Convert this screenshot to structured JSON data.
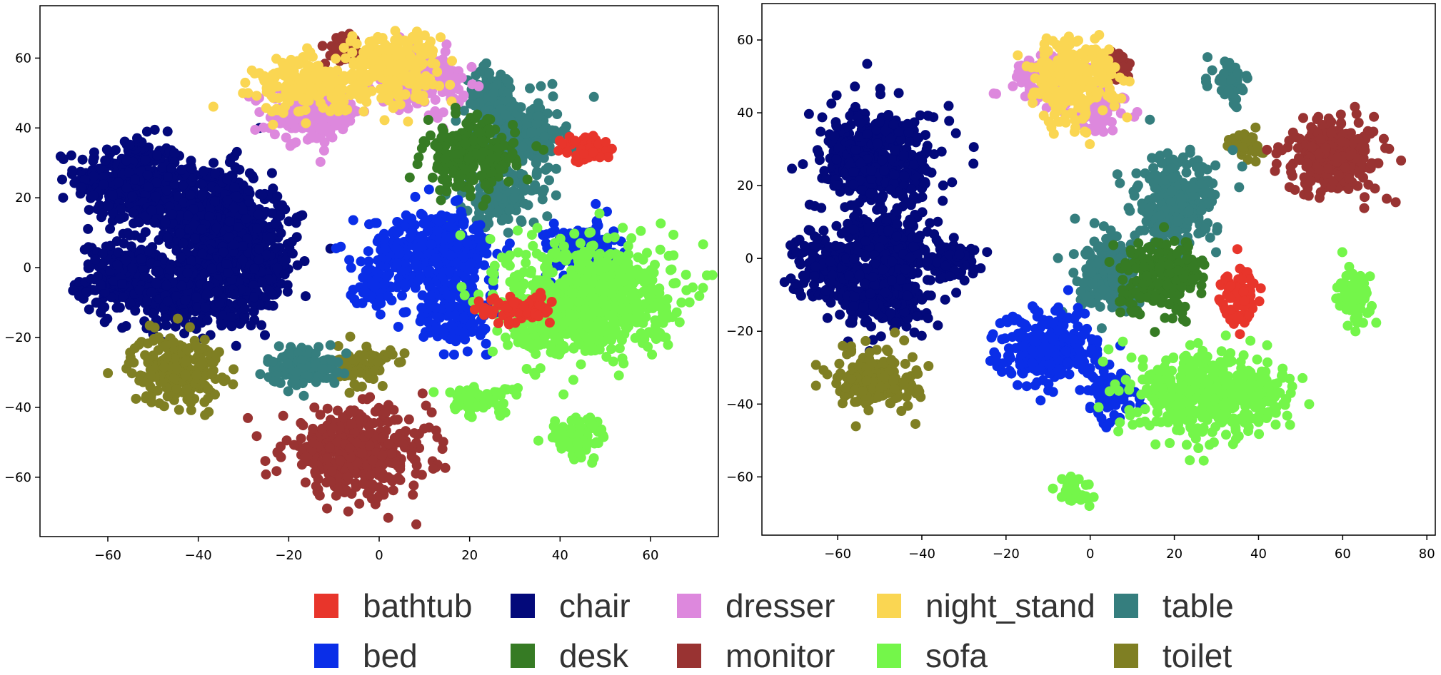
{
  "colors": {
    "bathtub": "#e8352b",
    "bed": "#0a2ee8",
    "chair": "#03097a",
    "desk": "#367b24",
    "dresser": "#dd88dd",
    "monitor": "#993332",
    "night_stand": "#fad652",
    "sofa": "#74f64a",
    "table": "#357e7e",
    "toilet": "#7f7f23"
  },
  "legend": {
    "items": [
      {
        "key": "bathtub",
        "label": "bathtub"
      },
      {
        "key": "chair",
        "label": "chair"
      },
      {
        "key": "dresser",
        "label": "dresser"
      },
      {
        "key": "night_stand",
        "label": "night_stand"
      },
      {
        "key": "table",
        "label": "table"
      },
      {
        "key": "bed",
        "label": "bed"
      },
      {
        "key": "desk",
        "label": "desk"
      },
      {
        "key": "monitor",
        "label": "monitor"
      },
      {
        "key": "sofa",
        "label": "sofa"
      },
      {
        "key": "toilet",
        "label": "toilet"
      }
    ]
  },
  "chart_data": [
    {
      "type": "scatter",
      "title": "",
      "xlabel": "",
      "ylabel": "",
      "xlim": [
        -75,
        75
      ],
      "ylim": [
        -77,
        75
      ],
      "xticks": [
        -60,
        -40,
        -20,
        0,
        20,
        40,
        60
      ],
      "yticks": [
        -60,
        -40,
        -20,
        0,
        20,
        40,
        60
      ],
      "grid": false,
      "clusters": [
        {
          "class": "chair",
          "cx": -55,
          "cy": 25,
          "sx": 6,
          "sy": 6
        },
        {
          "class": "chair",
          "cx": -56,
          "cy": -3,
          "sx": 5,
          "sy": 5
        },
        {
          "class": "chair",
          "cx": -38,
          "cy": 16,
          "sx": 7,
          "sy": 7
        },
        {
          "class": "chair",
          "cx": -30,
          "cy": 2,
          "sx": 6,
          "sy": 8
        },
        {
          "class": "chair",
          "cx": -42,
          "cy": -8,
          "sx": 5,
          "sy": 5
        },
        {
          "class": "toilet",
          "cx": -45,
          "cy": -29,
          "sx": 5,
          "sy": 5
        },
        {
          "class": "toilet",
          "cx": -3,
          "cy": -28,
          "sx": 3,
          "sy": 3
        },
        {
          "class": "table",
          "cx": -17,
          "cy": -28,
          "sx": 4,
          "sy": 3
        },
        {
          "class": "table",
          "cx": 25,
          "cy": 49,
          "sx": 3,
          "sy": 4
        },
        {
          "class": "table",
          "cx": 33,
          "cy": 38,
          "sx": 4,
          "sy": 5
        },
        {
          "class": "table",
          "cx": 27,
          "cy": 20,
          "sx": 4,
          "sy": 4
        },
        {
          "class": "monitor",
          "cx": -5,
          "cy": -53,
          "sx": 8,
          "sy": 6
        },
        {
          "class": "monitor",
          "cx": -8,
          "cy": 62,
          "sx": 2,
          "sy": 2
        },
        {
          "class": "dresser",
          "cx": -14,
          "cy": 44,
          "sx": 5,
          "sy": 4
        },
        {
          "class": "dresser",
          "cx": 9,
          "cy": 54,
          "sx": 5,
          "sy": 4
        },
        {
          "class": "night_stand",
          "cx": 3,
          "cy": 58,
          "sx": 5,
          "sy": 5
        },
        {
          "class": "night_stand",
          "cx": -15,
          "cy": 52,
          "sx": 6,
          "sy": 4
        },
        {
          "class": "desk",
          "cx": 20,
          "cy": 32,
          "sx": 5,
          "sy": 5
        },
        {
          "class": "bed",
          "cx": 12,
          "cy": 4,
          "sx": 7,
          "sy": 6
        },
        {
          "class": "bed",
          "cx": -1,
          "cy": -5,
          "sx": 2,
          "sy": 3
        },
        {
          "class": "bed",
          "cx": 16,
          "cy": -14,
          "sx": 4,
          "sy": 4
        },
        {
          "class": "bed",
          "cx": 45,
          "cy": 5,
          "sx": 4,
          "sy": 4
        },
        {
          "class": "sofa",
          "cx": 47,
          "cy": -8,
          "sx": 9,
          "sy": 8
        },
        {
          "class": "sofa",
          "cx": 38,
          "cy": -15,
          "sx": 5,
          "sy": 5
        },
        {
          "class": "sofa",
          "cx": 22,
          "cy": -38,
          "sx": 4,
          "sy": 2
        },
        {
          "class": "sofa",
          "cx": 44,
          "cy": -49,
          "sx": 3,
          "sy": 3
        },
        {
          "class": "bathtub",
          "cx": 46,
          "cy": 34,
          "sx": 3,
          "sy": 2
        },
        {
          "class": "bathtub",
          "cx": 30,
          "cy": -12,
          "sx": 4,
          "sy": 2
        }
      ]
    },
    {
      "type": "scatter",
      "title": "",
      "xlabel": "",
      "ylabel": "",
      "xlim": [
        -78,
        82
      ],
      "ylim": [
        -76,
        70
      ],
      "xticks": [
        -60,
        -40,
        -20,
        0,
        20,
        40,
        60,
        80
      ],
      "yticks": [
        -60,
        -40,
        -20,
        0,
        20,
        40,
        60
      ],
      "grid": false,
      "clusters": [
        {
          "class": "chair",
          "cx": -50,
          "cy": 27,
          "sx": 7,
          "sy": 7
        },
        {
          "class": "chair",
          "cx": -62,
          "cy": -2,
          "sx": 4,
          "sy": 5
        },
        {
          "class": "chair",
          "cx": -48,
          "cy": 3,
          "sx": 5,
          "sy": 5
        },
        {
          "class": "chair",
          "cx": -48,
          "cy": -10,
          "sx": 5,
          "sy": 5
        },
        {
          "class": "chair",
          "cx": -33,
          "cy": 0,
          "sx": 3,
          "sy": 3
        },
        {
          "class": "toilet",
          "cx": -51,
          "cy": -33,
          "sx": 5,
          "sy": 4
        },
        {
          "class": "toilet",
          "cx": 37,
          "cy": 31,
          "sx": 2,
          "sy": 2
        },
        {
          "class": "monitor",
          "cx": 58,
          "cy": 28,
          "sx": 6,
          "sy": 5
        },
        {
          "class": "monitor",
          "cx": 6,
          "cy": 53,
          "sx": 2,
          "sy": 2
        },
        {
          "class": "dresser",
          "cx": -10,
          "cy": 50,
          "sx": 4,
          "sy": 3
        },
        {
          "class": "dresser",
          "cx": 2,
          "cy": 40,
          "sx": 3,
          "sy": 3
        },
        {
          "class": "night_stand",
          "cx": -4,
          "cy": 49,
          "sx": 5,
          "sy": 6
        },
        {
          "class": "table",
          "cx": 20,
          "cy": 15,
          "sx": 5,
          "sy": 6
        },
        {
          "class": "table",
          "cx": 33,
          "cy": 48,
          "sx": 2,
          "sy": 3
        },
        {
          "class": "table",
          "cx": 5,
          "cy": -5,
          "sx": 4,
          "sy": 5
        },
        {
          "class": "desk",
          "cx": 17,
          "cy": -5,
          "sx": 5,
          "sy": 5
        },
        {
          "class": "bathtub",
          "cx": 35,
          "cy": -10,
          "sx": 2,
          "sy": 4
        },
        {
          "class": "bed",
          "cx": -10,
          "cy": -25,
          "sx": 6,
          "sy": 5
        },
        {
          "class": "bed",
          "cx": 5,
          "cy": -38,
          "sx": 3,
          "sy": 3
        },
        {
          "class": "sofa",
          "cx": 27,
          "cy": -37,
          "sx": 8,
          "sy": 6
        },
        {
          "class": "sofa",
          "cx": 40,
          "cy": -38,
          "sx": 4,
          "sy": 3
        },
        {
          "class": "sofa",
          "cx": 63,
          "cy": -10,
          "sx": 2,
          "sy": 4
        },
        {
          "class": "sofa",
          "cx": -4,
          "cy": -64,
          "sx": 2,
          "sy": 2
        }
      ]
    }
  ]
}
